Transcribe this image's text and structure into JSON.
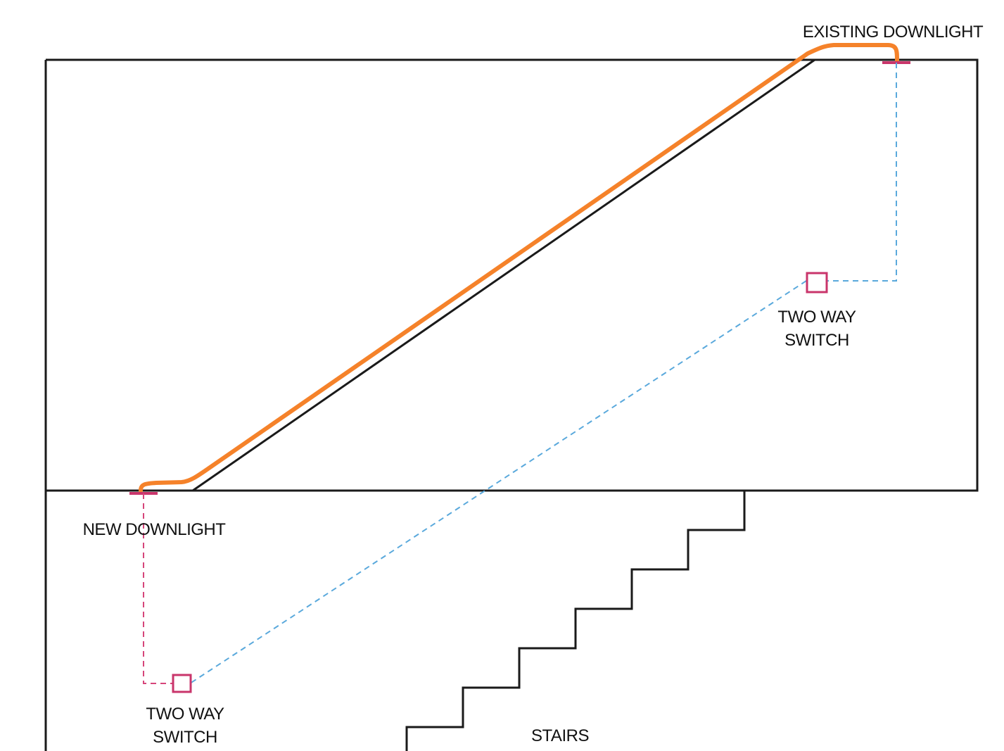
{
  "labels": {
    "existing_downlight": "EXISTING DOWNLIGHT",
    "new_downlight": "NEW DOWNLIGHT",
    "switch_upper_line1": "TWO WAY",
    "switch_upper_line2": "SWITCH",
    "switch_lower_line1": "TWO WAY",
    "switch_lower_line2": "SWITCH",
    "stairs": "STAIRS"
  },
  "colors": {
    "structure": "#1a1a1a",
    "cable_run": "#f5822a",
    "fixture": "#c9356b",
    "two_way_wiring": "#5aa9dc",
    "feed_wiring": "#d6457a",
    "background": "#ffffff"
  }
}
